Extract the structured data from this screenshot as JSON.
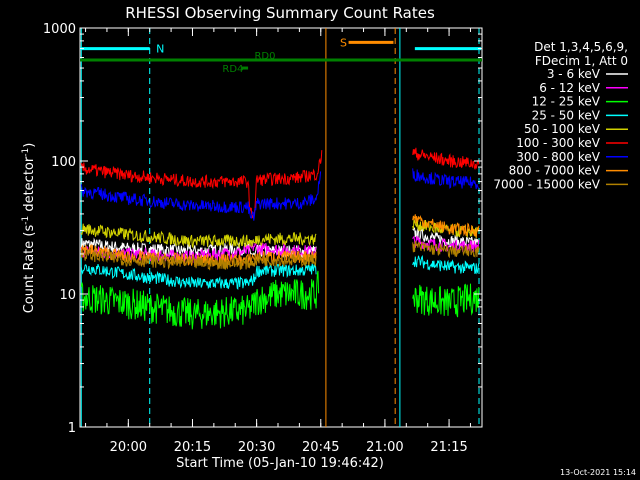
{
  "chart_data": {
    "type": "line",
    "title": "RHESSI Observing Summary Count Rates",
    "xlabel": "Start Time (05-Jan-10 19:46:42)",
    "ylabel_main": "Count Rate (s",
    "ylabel_sup1": "-1",
    "ylabel_mid": " detector",
    "ylabel_sup2": "-1",
    "ylabel_end": ")",
    "yscale": "log",
    "ylim": [
      1,
      1000
    ],
    "xlim_minutes": [
      -11.3,
      82.7
    ],
    "x_ticks": [
      {
        "m": 0,
        "label": "20:00"
      },
      {
        "m": 15,
        "label": "20:15"
      },
      {
        "m": 30,
        "label": "20:30"
      },
      {
        "m": 45,
        "label": "20:45"
      },
      {
        "m": 60,
        "label": "21:00"
      },
      {
        "m": 75,
        "label": "21:15"
      }
    ],
    "y_ticks": [
      {
        "v": 1,
        "label": "1"
      },
      {
        "v": 10,
        "label": "10"
      },
      {
        "v": 100,
        "label": "100"
      },
      {
        "v": 1000,
        "label": "1000"
      }
    ],
    "legend": {
      "header": [
        "Det 1,3,4,5,6,9,",
        "FDecim 1, Att 0"
      ],
      "entries": [
        {
          "label": "3 - 6 keV",
          "color": "#ffffff"
        },
        {
          "label": "6 - 12 keV",
          "color": "#ff00ff"
        },
        {
          "label": "12 - 25 keV",
          "color": "#00ff00"
        },
        {
          "label": "25 - 50 keV",
          "color": "#00ffff"
        },
        {
          "label": "50 - 100 keV",
          "color": "#d2d200"
        },
        {
          "label": "100 - 300 keV",
          "color": "#ff0000"
        },
        {
          "label": "300 - 800 keV",
          "color": "#0000ff"
        },
        {
          "label": "800 - 7000 keV",
          "color": "#ff8c00"
        },
        {
          "label": "7000 - 15000 keV",
          "color": "#b08000"
        }
      ]
    },
    "series": [
      {
        "name": "3 - 6 keV",
        "color": "#ffffff",
        "seg1": [
          [
            -11,
            24
          ],
          [
            0,
            22
          ],
          [
            15,
            21
          ],
          [
            28,
            22
          ],
          [
            29.5,
            19
          ],
          [
            30,
            21
          ],
          [
            40,
            21
          ],
          [
            44,
            21
          ]
        ],
        "seg2": [
          [
            66.5,
            29
          ],
          [
            70,
            27
          ],
          [
            75,
            25
          ],
          [
            82,
            24
          ]
        ]
      },
      {
        "name": "6 - 12 keV",
        "color": "#ff00ff",
        "seg1": [
          [
            -11,
            21
          ],
          [
            0,
            20
          ],
          [
            15,
            19
          ],
          [
            28,
            21
          ],
          [
            29.5,
            23
          ],
          [
            30,
            22
          ],
          [
            40,
            21
          ],
          [
            44,
            21
          ]
        ],
        "seg2": [
          [
            66.5,
            25
          ],
          [
            70,
            24
          ],
          [
            75,
            23
          ],
          [
            82,
            23
          ]
        ]
      },
      {
        "name": "12 - 25 keV",
        "color": "#00ff00",
        "seg1": [
          [
            -11,
            9.5
          ],
          [
            0,
            8.5
          ],
          [
            15,
            7
          ],
          [
            28,
            7.5
          ],
          [
            29,
            8
          ],
          [
            30,
            9
          ],
          [
            35,
            10
          ],
          [
            40,
            10
          ],
          [
            44,
            10
          ],
          [
            44.5,
            12
          ]
        ],
        "seg2": [
          [
            66.5,
            9.5
          ],
          [
            70,
            9
          ],
          [
            75,
            8.5
          ],
          [
            82,
            9.5
          ]
        ]
      },
      {
        "name": "25 - 50 keV",
        "color": "#00ffff",
        "seg1": [
          [
            -11,
            16
          ],
          [
            0,
            14
          ],
          [
            15,
            12
          ],
          [
            28,
            12
          ],
          [
            29.5,
            13
          ],
          [
            30,
            15
          ],
          [
            40,
            15
          ],
          [
            44,
            15.5
          ]
        ],
        "seg2": [
          [
            66.5,
            18
          ],
          [
            70,
            17
          ],
          [
            75,
            16
          ],
          [
            82,
            15.5
          ]
        ]
      },
      {
        "name": "50 - 100 keV",
        "color": "#d2d200",
        "seg1": [
          [
            -11,
            31
          ],
          [
            0,
            28
          ],
          [
            15,
            25
          ],
          [
            28,
            25
          ],
          [
            29.5,
            24
          ],
          [
            30,
            26
          ],
          [
            40,
            26
          ],
          [
            44,
            26
          ]
        ],
        "seg2": [
          [
            66.5,
            34
          ],
          [
            70,
            32
          ],
          [
            75,
            30
          ],
          [
            82,
            29
          ]
        ]
      },
      {
        "name": "100 - 300 keV",
        "color": "#ff0000",
        "seg1": [
          [
            -11,
            88
          ],
          [
            0,
            78
          ],
          [
            15,
            70
          ],
          [
            28,
            70
          ],
          [
            28.5,
            40
          ],
          [
            29.5,
            40
          ],
          [
            30,
            72
          ],
          [
            40,
            75
          ],
          [
            44,
            80
          ],
          [
            45,
            100
          ],
          [
            45.3,
            130
          ]
        ],
        "seg2": [
          [
            66.5,
            115
          ],
          [
            70,
            108
          ],
          [
            75,
            100
          ],
          [
            82,
            95
          ]
        ]
      },
      {
        "name": "300 - 800 keV",
        "color": "#0000ff",
        "seg1": [
          [
            -11,
            60
          ],
          [
            0,
            52
          ],
          [
            15,
            46
          ],
          [
            28,
            45
          ],
          [
            28.5,
            38
          ],
          [
            29.5,
            38
          ],
          [
            30,
            48
          ],
          [
            40,
            48
          ],
          [
            44,
            52
          ],
          [
            45,
            80
          ]
        ],
        "seg2": [
          [
            66.5,
            80
          ],
          [
            70,
            75
          ],
          [
            75,
            70
          ],
          [
            82,
            68
          ]
        ]
      },
      {
        "name": "800 - 7000 keV",
        "color": "#ff8c00",
        "seg1": [
          [
            -11,
            22
          ],
          [
            0,
            19
          ],
          [
            15,
            18
          ],
          [
            28,
            18
          ],
          [
            29.5,
            19
          ],
          [
            30,
            19
          ],
          [
            40,
            19
          ],
          [
            44,
            19.5
          ]
        ],
        "seg2": [
          [
            66.5,
            38
          ],
          [
            70,
            34
          ],
          [
            75,
            31
          ],
          [
            82,
            30
          ]
        ]
      },
      {
        "name": "7000 - 15000 keV",
        "color": "#b08000",
        "seg1": [
          [
            -11,
            20
          ],
          [
            0,
            18
          ],
          [
            15,
            17
          ],
          [
            28,
            17
          ],
          [
            30,
            18
          ],
          [
            40,
            18
          ],
          [
            44,
            18
          ]
        ],
        "seg2": [
          [
            66.5,
            23
          ],
          [
            70,
            22
          ],
          [
            75,
            21
          ],
          [
            82,
            21
          ]
        ]
      }
    ],
    "annotations": {
      "night": {
        "label": "N",
        "color": "#00ffff",
        "y": 700,
        "intervals": [
          [
            -11.3,
            5
          ],
          [
            67,
            82.5
          ]
        ],
        "label_m": 6.5
      },
      "saa": {
        "label": "S",
        "color": "#ff8c00",
        "y": 780,
        "interval": [
          51.5,
          62
        ],
        "label_m": 49.5
      },
      "rd0": {
        "label": "RD0",
        "color": "#008000",
        "y": 575,
        "interval": [
          -11.3,
          82.7
        ],
        "label_m": 29.5
      },
      "rd4": {
        "label": "RD4",
        "color": "#008000",
        "y": 500,
        "interval": [
          26.5,
          28
        ],
        "label_m": 22
      }
    },
    "vertical_lines": [
      {
        "m": -11,
        "color": "#00ffff",
        "style": "solid"
      },
      {
        "m": 5,
        "color": "#00ffff",
        "style": "dashed"
      },
      {
        "m": 46.2,
        "color": "#ff8c00",
        "style": "solid"
      },
      {
        "m": 62.4,
        "color": "#ff8c00",
        "style": "dashed"
      },
      {
        "m": 63.5,
        "color": "#00ffff",
        "style": "solid"
      },
      {
        "m": 82,
        "color": "#00ffff",
        "style": "dashed"
      }
    ],
    "timestamp": "13-Oct-2021 15:14"
  }
}
